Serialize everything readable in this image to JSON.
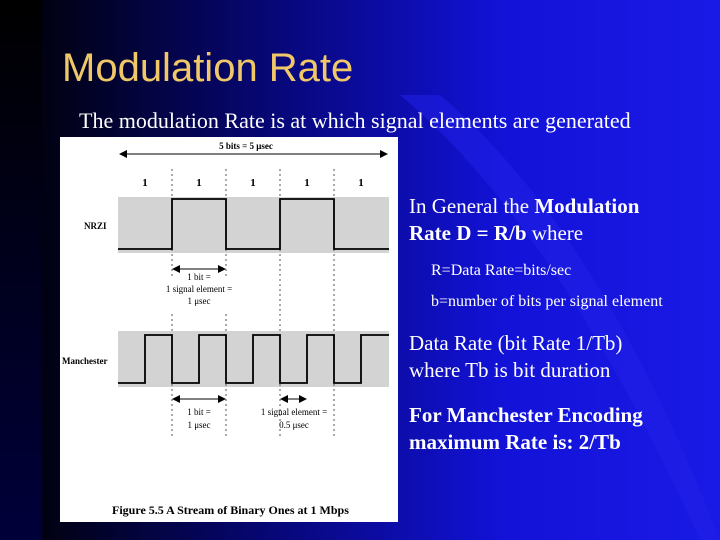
{
  "slide": {
    "title": "Modulation Rate",
    "intro": "The modulation Rate is at which signal elements are generated",
    "colors": {
      "title": "#f0c868",
      "text": "#ffffff",
      "background": "#1212d8"
    }
  },
  "figure": {
    "top_span": "5 bits = 5 μsec",
    "bits": [
      "1",
      "1",
      "1",
      "1",
      "1"
    ],
    "nrzi_label": "NRZI",
    "manchester_label": "Manchester",
    "nrzi_annot": [
      "1 bit =",
      "1 signal element =",
      "1 μsec"
    ],
    "man_bit_annot": [
      "1 bit =",
      "1 μsec"
    ],
    "man_elem_annot": [
      "1 signal element =",
      "0.5 μsec"
    ],
    "caption": "Figure 5.5  A Stream of Binary Ones at 1 Mbps"
  },
  "bullets": {
    "general_pre": "In General the ",
    "general_bold1": "Modulation",
    "general_bold2": "Rate D = R/b",
    "general_post": " where",
    "r_def": "R=Data Rate=bits/sec",
    "b_def": "b=number of bits per signal element",
    "data_rate_line1": "Data Rate (bit Rate 1/Tb)",
    "data_rate_line2": "where Tb is bit duration",
    "manchester_line1": "For Manchester Encoding",
    "manchester_line2": "maximum Rate is: 2/Tb"
  }
}
